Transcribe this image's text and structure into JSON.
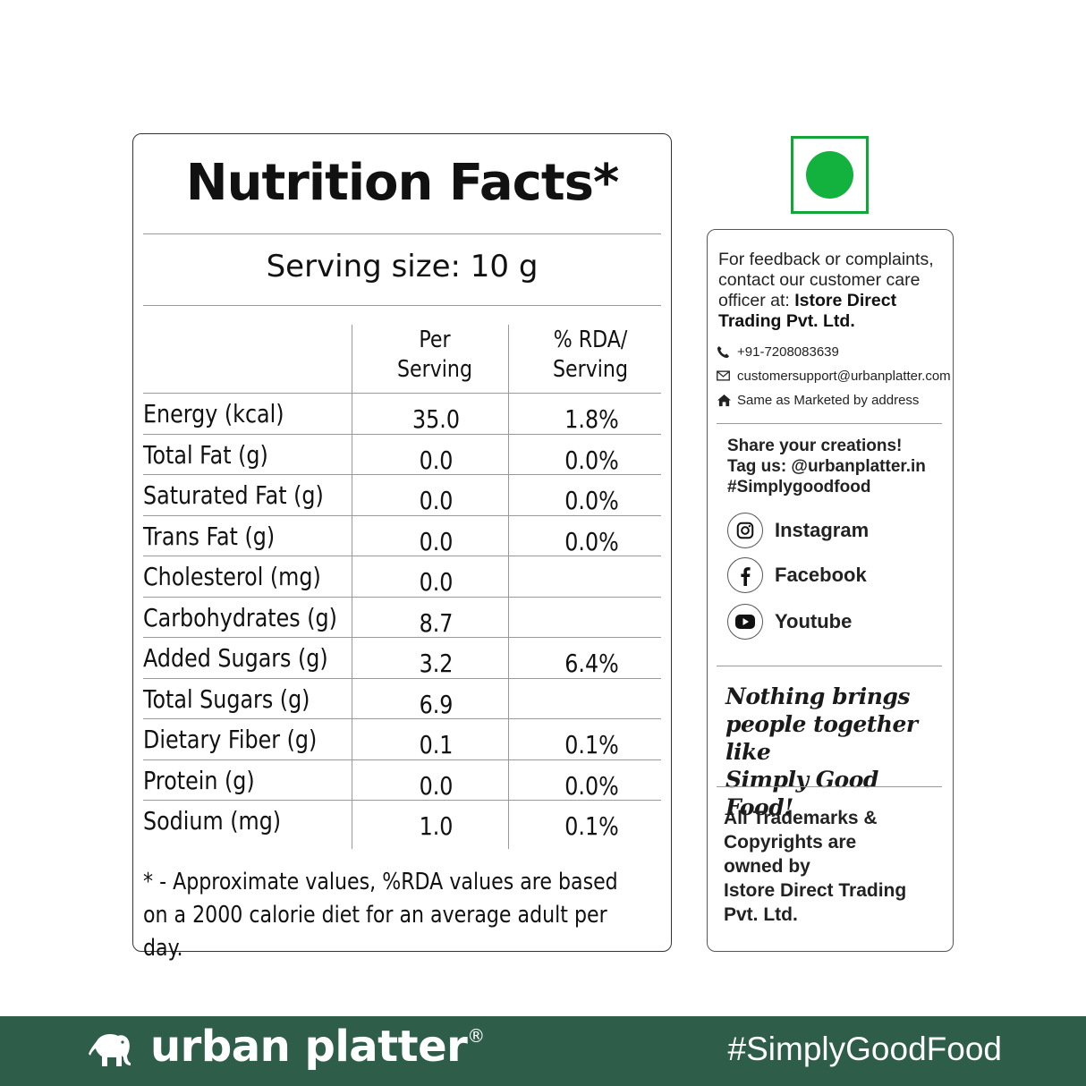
{
  "nutrition": {
    "title": "Nutrition Facts*",
    "serving_size": "Serving size: 10 g",
    "col_per_serving": [
      "Per",
      "Serving"
    ],
    "col_rda": [
      "% RDA/",
      "Serving"
    ],
    "rows": [
      {
        "label": "Energy (kcal)",
        "per_serving": "35.0",
        "rda": "1.8%"
      },
      {
        "label": "Total Fat (g)",
        "per_serving": "0.0",
        "rda": "0.0%"
      },
      {
        "label": "Saturated Fat (g)",
        "per_serving": "0.0",
        "rda": "0.0%"
      },
      {
        "label": "Trans Fat (g)",
        "per_serving": "0.0",
        "rda": "0.0%"
      },
      {
        "label": "Cholesterol (mg)",
        "per_serving": "0.0",
        "rda": ""
      },
      {
        "label": "Carbohydrates (g)",
        "per_serving": "8.7",
        "rda": ""
      },
      {
        "label": "Added Sugars (g)",
        "per_serving": "3.2",
        "rda": "6.4%"
      },
      {
        "label": "Total Sugars (g)",
        "per_serving": "6.9",
        "rda": ""
      },
      {
        "label": "Dietary Fiber (g)",
        "per_serving": "0.1",
        "rda": "0.1%"
      },
      {
        "label": "Protein (g)",
        "per_serving": "0.0",
        "rda": "0.0%"
      },
      {
        "label": "Sodium (mg)",
        "per_serving": "1.0",
        "rda": "0.1%"
      }
    ],
    "footnote_line1": "* - Approximate values, %RDA values are based",
    "footnote_line2": "on a 2000 calorie diet for an average adult per day."
  },
  "veg_mark": {
    "color": "#13b13d",
    "icon": "veg-symbol-icon"
  },
  "info": {
    "feedback_line1": "For feedback or complaints,",
    "feedback_line2": "contact our customer care",
    "feedback_line3": "officer at: ",
    "feedback_company_a": "Istore Direct",
    "feedback_company_b": "Trading Pvt. Ltd.",
    "phone": "+91-7208083639",
    "email": "customersupport@urbanplatter.com",
    "address": "Same as Marketed by address",
    "share_line1": "Share your creations!",
    "share_line2": "Tag us: @urbanplatter.in",
    "share_line3": "#Simplygoodfood",
    "socials": [
      {
        "label": "Instagram",
        "icon": "instagram-icon"
      },
      {
        "label": "Facebook",
        "icon": "facebook-icon"
      },
      {
        "label": "Youtube",
        "icon": "youtube-icon"
      }
    ],
    "tagline_line1": "Nothing brings",
    "tagline_line2": "people together like",
    "tagline_line3": "Simply Good Food!",
    "trademark_line1": "All Trademarks &",
    "trademark_line2": "Copyrights are",
    "trademark_line3": "owned by",
    "trademark_line4": "Istore Direct Trading",
    "trademark_line5": "Pvt. Ltd."
  },
  "footer": {
    "brand": "urban platter",
    "registered": "®",
    "hashtag": "#SimplyGoodFood",
    "bg_color": "#2e5e4a",
    "logo_icon": "elephant-icon"
  }
}
